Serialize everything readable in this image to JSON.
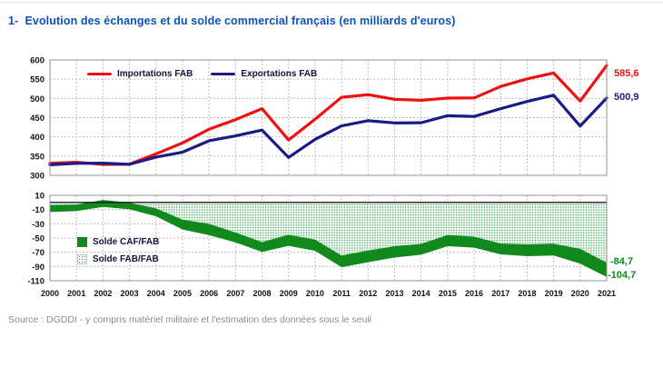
{
  "page": {
    "heading": "1-  Evolution des échanges et du solde commercial français (en milliards d'euros)",
    "source_note": "Source : DGDDI - y compris matériel militaire et l'estimation des données sous le seuil"
  },
  "colors": {
    "heading_blue": "#0d52ba",
    "imports_red": "#ee1111",
    "exports_navy": "#1a1c86",
    "solde_green": "#11891c",
    "hatch_dot_green": "#2f9a4f",
    "hatch_bg": "#f7fcf7",
    "grid_gray": "#bcbcbc",
    "plot_border_gray": "#909090",
    "zero_line": "#1a1a1a",
    "axis_text": "#141414",
    "legend_text": "#15153f",
    "source_gray": "#8c8c8c"
  },
  "years": [
    2000,
    2001,
    2002,
    2003,
    2004,
    2005,
    2006,
    2007,
    2008,
    2009,
    2010,
    2011,
    2012,
    2013,
    2014,
    2015,
    2016,
    2017,
    2018,
    2019,
    2020,
    2021
  ],
  "chart_data": [
    {
      "type": "line",
      "title": "Evolution des échanges",
      "xlabel": "",
      "ylabel": "",
      "ylim": [
        300,
        600
      ],
      "y_ticks": [
        600,
        550,
        500,
        450,
        400,
        350,
        300
      ],
      "grid": true,
      "legend_position": "top-inside",
      "series": [
        {
          "name": "Importations FAB",
          "color_key": "imports_red",
          "values": [
            331.4,
            334.1,
            328.2,
            329.0,
            355.7,
            384.3,
            419.8,
            444.8,
            473.3,
            391.9,
            445.8,
            503.0,
            509.7,
            497.7,
            495.0,
            500.8,
            501.2,
            531.1,
            550.9,
            566.1,
            493.3,
            585.6
          ]
        },
        {
          "name": "Exportations FAB",
          "color_key": "exports_navy",
          "values": [
            327.5,
            331.1,
            331.7,
            328.6,
            347.4,
            360.2,
            389.8,
            402.5,
            417.6,
            346.5,
            393.5,
            428.5,
            442.1,
            436.2,
            436.7,
            455.1,
            453.1,
            473.3,
            492.0,
            508.2,
            428.1,
            500.9
          ]
        }
      ],
      "end_labels": [
        {
          "series": "Importations FAB",
          "text": "585,6"
        },
        {
          "series": "Exportations FAB",
          "text": "500,9"
        }
      ]
    },
    {
      "type": "area",
      "title": "Solde commercial",
      "xlabel": "",
      "ylabel": "",
      "ylim": [
        -110,
        10
      ],
      "y_ticks": [
        10,
        -10,
        -30,
        -50,
        -70,
        -90,
        -110
      ],
      "grid": true,
      "legend_position": "left-inside",
      "series": [
        {
          "name": "Solde CAF/FAB",
          "style": "solid",
          "color_key": "solde_green",
          "values": [
            -13.5,
            -12.2,
            -6.3,
            -9.6,
            -19.5,
            -38.0,
            -46.0,
            -56.2,
            -69.6,
            -61.0,
            -68.0,
            -91.0,
            -84.0,
            -77.5,
            -73.5,
            -61.5,
            -63.5,
            -73.0,
            -75.5,
            -74.5,
            -86.0,
            -104.7
          ]
        },
        {
          "name": "Solde FAB/FAB",
          "style": "hatched",
          "color_key": "hatch_dot_green",
          "values": [
            -3.9,
            -3.0,
            3.5,
            -0.4,
            -8.3,
            -24.1,
            -30.0,
            -42.3,
            -55.7,
            -45.4,
            -52.3,
            -74.5,
            -67.6,
            -61.5,
            -58.3,
            -45.7,
            -48.1,
            -57.8,
            -58.9,
            -57.9,
            -65.2,
            -84.7
          ]
        }
      ],
      "end_labels": [
        {
          "series": "Solde FAB/FAB",
          "text": "-84,7"
        },
        {
          "series": "Solde CAF/FAB",
          "text": "-104,7"
        }
      ]
    }
  ]
}
